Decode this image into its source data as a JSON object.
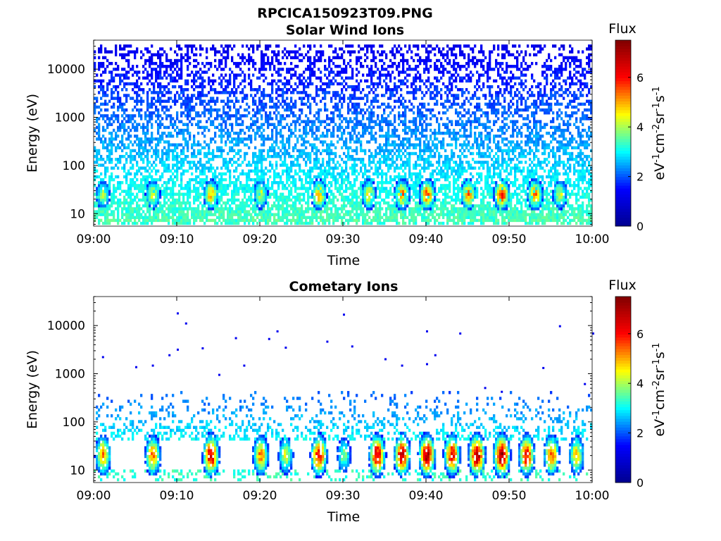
{
  "figure": {
    "filename": "RPCICA150923T09.PNG"
  },
  "colormap": {
    "name": "jet",
    "stops": [
      "#00008f",
      "#0000ff",
      "#00ffff",
      "#ffff00",
      "#ff0000",
      "#800000"
    ]
  },
  "chart_data": [
    {
      "type": "heatmap",
      "title": "Solar Wind Ions",
      "xlabel": "Time",
      "ylabel": "Energy (eV)",
      "x_ticks": [
        "09:00",
        "09:10",
        "09:20",
        "09:30",
        "09:40",
        "09:50",
        "10:00"
      ],
      "x_range": [
        "09:00",
        "10:00"
      ],
      "y_scale": "log",
      "y_ticks": [
        10,
        100,
        1000,
        10000
      ],
      "y_tick_labels": [
        "10",
        "100",
        "1000",
        "10000"
      ],
      "y_range": [
        5.5,
        40000
      ],
      "colorbar": {
        "label": "Flux",
        "unit_label": "eV-1cm-2sr-1s-1",
        "range": [
          0,
          7.5
        ],
        "ticks": [
          0,
          2,
          4,
          6
        ],
        "tick_labels": [
          "0",
          "2",
          "4",
          "6"
        ]
      },
      "features": {
        "background_flux": [
          1.2,
          3.5
        ],
        "background_energy_range": [
          6,
          30000
        ],
        "burst_energy_range": [
          12,
          45
        ],
        "bursts": [
          {
            "time": "09:01",
            "flux": 4.2
          },
          {
            "time": "09:07",
            "flux": 4.5
          },
          {
            "time": "09:14",
            "flux": 5.2
          },
          {
            "time": "09:20",
            "flux": 4.5
          },
          {
            "time": "09:27",
            "flux": 5.3
          },
          {
            "time": "09:33",
            "flux": 5.0
          },
          {
            "time": "09:37",
            "flux": 5.5
          },
          {
            "time": "09:40",
            "flux": 5.8
          },
          {
            "time": "09:45",
            "flux": 5.5
          },
          {
            "time": "09:49",
            "flux": 6.2
          },
          {
            "time": "09:53",
            "flux": 5.5
          },
          {
            "time": "09:56",
            "flux": 4.5
          }
        ]
      }
    },
    {
      "type": "heatmap",
      "title": "Cometary Ions",
      "xlabel": "Time",
      "ylabel": "Energy (eV)",
      "x_ticks": [
        "09:00",
        "09:10",
        "09:20",
        "09:30",
        "09:40",
        "09:50",
        "10:00"
      ],
      "x_range": [
        "09:00",
        "10:00"
      ],
      "y_scale": "log",
      "y_ticks": [
        10,
        100,
        1000,
        10000
      ],
      "y_tick_labels": [
        "10",
        "100",
        "1000",
        "10000"
      ],
      "y_range": [
        5.5,
        40000
      ],
      "colorbar": {
        "label": "Flux",
        "unit_label": "eV-1cm-2sr-1s-1",
        "range": [
          0,
          7.5
        ],
        "ticks": [
          0,
          2,
          4,
          6
        ],
        "tick_labels": [
          "0",
          "2",
          "4",
          "6"
        ]
      },
      "features": {
        "background_flux": [
          2.0,
          3.0
        ],
        "background_energy_range": [
          40,
          400
        ],
        "burst_energy_range": [
          8,
          45
        ],
        "bursts": [
          {
            "time": "09:01",
            "flux": 5.5
          },
          {
            "time": "09:07",
            "flux": 5.5
          },
          {
            "time": "09:14",
            "flux": 6.8
          },
          {
            "time": "09:20",
            "flux": 5.5
          },
          {
            "time": "09:23",
            "flux": 4.5
          },
          {
            "time": "09:27",
            "flux": 6.5
          },
          {
            "time": "09:30",
            "flux": 4.0
          },
          {
            "time": "09:34",
            "flux": 6.8
          },
          {
            "time": "09:37",
            "flux": 6.8
          },
          {
            "time": "09:40",
            "flux": 7.2
          },
          {
            "time": "09:43",
            "flux": 6.5
          },
          {
            "time": "09:46",
            "flux": 7.3
          },
          {
            "time": "09:49",
            "flux": 7.5
          },
          {
            "time": "09:52",
            "flux": 6.5
          },
          {
            "time": "09:55",
            "flux": 5.8
          },
          {
            "time": "09:58",
            "flux": 5.0
          }
        ],
        "sparse_points": [
          {
            "time": "09:01",
            "energy": 2100
          },
          {
            "time": "09:05",
            "energy": 1300
          },
          {
            "time": "09:07",
            "energy": 1400
          },
          {
            "time": "09:09",
            "energy": 2300
          },
          {
            "time": "09:10",
            "energy": 17000
          },
          {
            "time": "09:10",
            "energy": 3000
          },
          {
            "time": "09:11",
            "energy": 10500
          },
          {
            "time": "09:13",
            "energy": 3200
          },
          {
            "time": "09:15",
            "energy": 900
          },
          {
            "time": "09:17",
            "energy": 5200
          },
          {
            "time": "09:18",
            "energy": 1400
          },
          {
            "time": "09:21",
            "energy": 5000
          },
          {
            "time": "09:22",
            "energy": 7200
          },
          {
            "time": "09:23",
            "energy": 3300
          },
          {
            "time": "09:28",
            "energy": 4400
          },
          {
            "time": "09:30",
            "energy": 16000
          },
          {
            "time": "09:31",
            "energy": 3500
          },
          {
            "time": "09:35",
            "energy": 1900
          },
          {
            "time": "09:37",
            "energy": 1400
          },
          {
            "time": "09:40",
            "energy": 7200
          },
          {
            "time": "09:40",
            "energy": 1500
          },
          {
            "time": "09:41",
            "energy": 2300
          },
          {
            "time": "09:44",
            "energy": 6500
          },
          {
            "time": "09:47",
            "energy": 480
          },
          {
            "time": "09:49",
            "energy": 400
          },
          {
            "time": "09:54",
            "energy": 1250
          },
          {
            "time": "09:56",
            "energy": 9200
          },
          {
            "time": "09:59",
            "energy": 580
          },
          {
            "time": "09:60",
            "energy": 6500
          }
        ]
      }
    }
  ]
}
